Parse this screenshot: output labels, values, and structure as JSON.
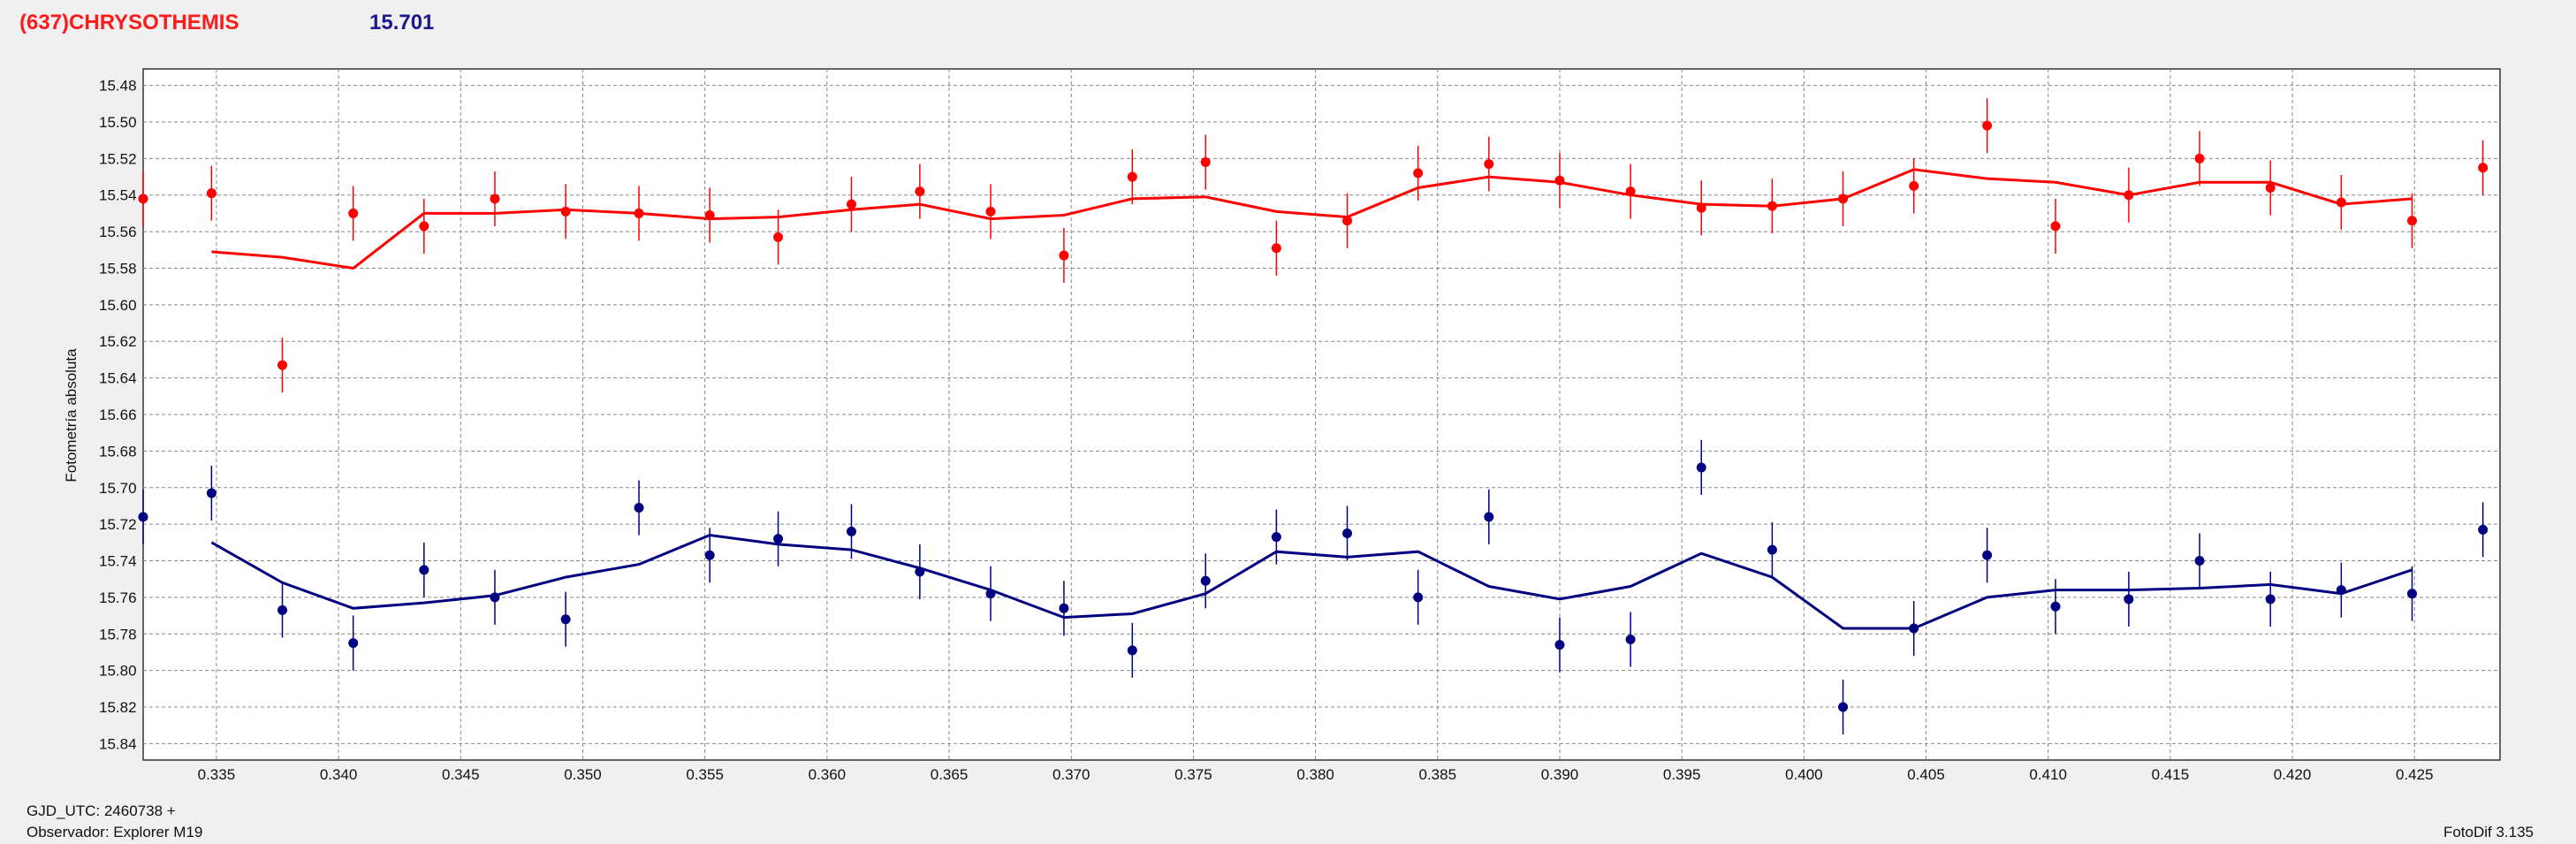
{
  "header": {
    "object_name": "(637)CHRYSOTHEMIS",
    "value": "15.701"
  },
  "footer": {
    "gjd_label": "GJD_UTC: 2460738 +",
    "observer_label": "Observador: Explorer M19",
    "software_label": "FotoDif 3.135"
  },
  "colors": {
    "series_red": "#ff0000",
    "series_blue": "#000080",
    "background": "#f0f0f0",
    "plot_background": "#ffffff"
  },
  "chart_data": {
    "type": "scatter",
    "title": "",
    "xlabel": "",
    "ylabel": "Fotometría absoluta",
    "xlim": [
      0.332,
      0.4285
    ],
    "ylim": [
      15.471,
      15.849
    ],
    "y_inverted": true,
    "grid": true,
    "x_ticks": [
      "0.335",
      "0.340",
      "0.345",
      "0.350",
      "0.355",
      "0.360",
      "0.365",
      "0.370",
      "0.375",
      "0.380",
      "0.385",
      "0.390",
      "0.395",
      "0.400",
      "0.405",
      "0.410",
      "0.415",
      "0.420",
      "0.425"
    ],
    "y_ticks": [
      "15.48",
      "15.50",
      "15.52",
      "15.54",
      "15.56",
      "15.58",
      "15.60",
      "15.62",
      "15.64",
      "15.66",
      "15.68",
      "15.70",
      "15.72",
      "15.74",
      "15.76",
      "15.78",
      "15.80",
      "15.82",
      "15.84"
    ],
    "series": [
      {
        "color": "#ff0000",
        "error": 0.015,
        "points": [
          [
            0.332,
            15.542
          ],
          [
            0.3348,
            15.539
          ],
          [
            0.3377,
            15.633
          ],
          [
            0.3406,
            15.55
          ],
          [
            0.3435,
            15.557
          ],
          [
            0.3464,
            15.542
          ],
          [
            0.3493,
            15.549
          ],
          [
            0.3523,
            15.55
          ],
          [
            0.3552,
            15.551
          ],
          [
            0.358,
            15.563
          ],
          [
            0.361,
            15.545
          ],
          [
            0.3638,
            15.538
          ],
          [
            0.3667,
            15.549
          ],
          [
            0.3697,
            15.573
          ],
          [
            0.3725,
            15.53
          ],
          [
            0.3755,
            15.522
          ],
          [
            0.3784,
            15.569
          ],
          [
            0.3813,
            15.554
          ],
          [
            0.3842,
            15.528
          ],
          [
            0.3871,
            15.523
          ],
          [
            0.39,
            15.532
          ],
          [
            0.3929,
            15.538
          ],
          [
            0.3958,
            15.547
          ],
          [
            0.3987,
            15.546
          ],
          [
            0.4016,
            15.542
          ],
          [
            0.4045,
            15.535
          ],
          [
            0.4075,
            15.502
          ],
          [
            0.4103,
            15.557
          ],
          [
            0.4133,
            15.54
          ],
          [
            0.4162,
            15.52
          ],
          [
            0.4191,
            15.536
          ],
          [
            0.422,
            15.544
          ],
          [
            0.4249,
            15.554
          ],
          [
            0.4278,
            15.525
          ]
        ],
        "trend": [
          [
            0.3348,
            15.571
          ],
          [
            0.3377,
            15.574
          ],
          [
            0.3406,
            15.58
          ],
          [
            0.3435,
            15.55
          ],
          [
            0.3464,
            15.55
          ],
          [
            0.3493,
            15.548
          ],
          [
            0.3523,
            15.55
          ],
          [
            0.3552,
            15.553
          ],
          [
            0.358,
            15.552
          ],
          [
            0.361,
            15.548
          ],
          [
            0.3638,
            15.545
          ],
          [
            0.3667,
            15.553
          ],
          [
            0.3697,
            15.551
          ],
          [
            0.3725,
            15.542
          ],
          [
            0.3755,
            15.541
          ],
          [
            0.3784,
            15.549
          ],
          [
            0.3813,
            15.552
          ],
          [
            0.3842,
            15.536
          ],
          [
            0.3871,
            15.53
          ],
          [
            0.39,
            15.533
          ],
          [
            0.3929,
            15.54
          ],
          [
            0.3958,
            15.545
          ],
          [
            0.3987,
            15.546
          ],
          [
            0.4016,
            15.542
          ],
          [
            0.4045,
            15.526
          ],
          [
            0.4075,
            15.531
          ],
          [
            0.4103,
            15.533
          ],
          [
            0.4133,
            15.54
          ],
          [
            0.4162,
            15.533
          ],
          [
            0.4191,
            15.533
          ],
          [
            0.422,
            15.545
          ],
          [
            0.4249,
            15.542
          ]
        ]
      },
      {
        "color": "#000080",
        "error": 0.015,
        "points": [
          [
            0.332,
            15.716
          ],
          [
            0.3348,
            15.703
          ],
          [
            0.3377,
            15.767
          ],
          [
            0.3406,
            15.785
          ],
          [
            0.3435,
            15.745
          ],
          [
            0.3464,
            15.76
          ],
          [
            0.3493,
            15.772
          ],
          [
            0.3523,
            15.711
          ],
          [
            0.3552,
            15.737
          ],
          [
            0.358,
            15.728
          ],
          [
            0.361,
            15.724
          ],
          [
            0.3638,
            15.746
          ],
          [
            0.3667,
            15.758
          ],
          [
            0.3697,
            15.766
          ],
          [
            0.3725,
            15.789
          ],
          [
            0.3755,
            15.751
          ],
          [
            0.3784,
            15.727
          ],
          [
            0.3813,
            15.725
          ],
          [
            0.3842,
            15.76
          ],
          [
            0.3871,
            15.716
          ],
          [
            0.39,
            15.786
          ],
          [
            0.3929,
            15.783
          ],
          [
            0.3958,
            15.689
          ],
          [
            0.3987,
            15.734
          ],
          [
            0.4016,
            15.82
          ],
          [
            0.4045,
            15.777
          ],
          [
            0.4075,
            15.737
          ],
          [
            0.4103,
            15.765
          ],
          [
            0.4133,
            15.761
          ],
          [
            0.4162,
            15.74
          ],
          [
            0.4191,
            15.761
          ],
          [
            0.422,
            15.756
          ],
          [
            0.4249,
            15.758
          ],
          [
            0.4278,
            15.723
          ]
        ],
        "trend": [
          [
            0.3348,
            15.73
          ],
          [
            0.3377,
            15.752
          ],
          [
            0.3406,
            15.766
          ],
          [
            0.3435,
            15.763
          ],
          [
            0.3464,
            15.759
          ],
          [
            0.3493,
            15.749
          ],
          [
            0.3523,
            15.742
          ],
          [
            0.3552,
            15.726
          ],
          [
            0.358,
            15.731
          ],
          [
            0.361,
            15.734
          ],
          [
            0.3638,
            15.744
          ],
          [
            0.3667,
            15.756
          ],
          [
            0.3697,
            15.771
          ],
          [
            0.3725,
            15.769
          ],
          [
            0.3755,
            15.758
          ],
          [
            0.3784,
            15.735
          ],
          [
            0.3813,
            15.738
          ],
          [
            0.3842,
            15.735
          ],
          [
            0.3871,
            15.754
          ],
          [
            0.39,
            15.761
          ],
          [
            0.3929,
            15.754
          ],
          [
            0.3958,
            15.736
          ],
          [
            0.3987,
            15.749
          ],
          [
            0.4016,
            15.777
          ],
          [
            0.4045,
            15.777
          ],
          [
            0.4075,
            15.76
          ],
          [
            0.4103,
            15.756
          ],
          [
            0.4133,
            15.756
          ],
          [
            0.4162,
            15.755
          ],
          [
            0.4191,
            15.753
          ],
          [
            0.422,
            15.758
          ],
          [
            0.4249,
            15.745
          ]
        ]
      }
    ]
  }
}
